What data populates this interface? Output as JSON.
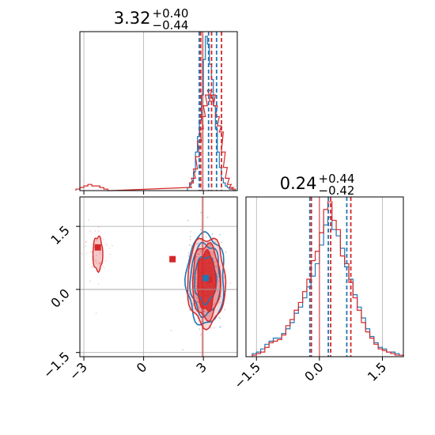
{
  "colors": {
    "blue": "#1f77b4",
    "red": "#d62728",
    "grid": "#b0b0b0"
  },
  "chart_data": [
    {
      "panel": "top-left",
      "type": "histogram",
      "title": {
        "median": "3.32",
        "plus": "+0.40",
        "minus": "−0.44"
      },
      "xlim": [
        -3.2,
        4.7
      ],
      "x_ticks": [
        -3,
        0,
        3
      ],
      "quantile_lines": {
        "blue": [
          2.85,
          3.32,
          3.72
        ],
        "red": [
          2.8,
          3.35,
          3.85
        ]
      },
      "truth_line": 2.95,
      "series": [
        {
          "color": "blue",
          "bins_x": [
            2.2,
            2.3,
            2.4,
            2.5,
            2.6,
            2.7,
            2.8,
            2.9,
            3.0,
            3.1,
            3.2,
            3.3,
            3.4,
            3.5,
            3.6,
            3.7,
            3.8,
            3.9,
            4.0,
            4.1,
            4.2,
            4.3,
            4.4,
            4.5
          ],
          "counts": [
            0.02,
            0.04,
            0.06,
            0.12,
            0.25,
            0.35,
            0.46,
            0.62,
            0.85,
            1.0,
            0.95,
            0.82,
            0.72,
            0.55,
            0.4,
            0.25,
            0.15,
            0.08,
            0.05,
            0.03,
            0.02,
            0.01,
            0.01,
            0.0
          ]
        },
        {
          "color": "red",
          "bins_x": [
            -3.4,
            -3.2,
            -3.0,
            -2.8,
            -2.6,
            -2.4,
            -2.2,
            -2.0,
            -1.8,
            2.2,
            2.3,
            2.4,
            2.5,
            2.6,
            2.7,
            2.8,
            2.9,
            3.0,
            3.1,
            3.2,
            3.3,
            3.4,
            3.5,
            3.6,
            3.7,
            3.8,
            3.9,
            4.0,
            4.1,
            4.2,
            4.3,
            4.4
          ],
          "counts": [
            0.01,
            0.02,
            0.03,
            0.04,
            0.03,
            0.03,
            0.02,
            0.01,
            0.0,
            0.02,
            0.05,
            0.08,
            0.14,
            0.22,
            0.32,
            0.4,
            0.48,
            0.55,
            0.62,
            0.65,
            0.58,
            0.62,
            0.55,
            0.48,
            0.42,
            0.38,
            0.25,
            0.15,
            0.08,
            0.04,
            0.02,
            0.01
          ]
        }
      ]
    },
    {
      "panel": "bottom-left",
      "type": "contour",
      "xlim": [
        -3.2,
        4.7
      ],
      "ylim": [
        -1.6,
        2.2
      ],
      "x_ticks": [
        -3,
        0,
        3
      ],
      "y_ticks": [
        -1.5,
        0.0,
        1.5
      ],
      "truth_lines": {
        "x": 2.95,
        "y": 0.0
      },
      "markers": [
        {
          "color": "red",
          "x": -2.3,
          "y": 1.0
        },
        {
          "color": "red",
          "x": 1.45,
          "y": 0.72
        },
        {
          "color": "red",
          "x": 3.3,
          "y": 0.23
        },
        {
          "color": "blue",
          "x": 3.12,
          "y": 0.27
        }
      ],
      "contours": {
        "main_center": [
          3.1,
          0.24
        ],
        "blue_radii": [
          [
            0.55,
            0.55
          ],
          [
            0.75,
            0.85
          ],
          [
            0.95,
            1.08
          ]
        ],
        "red_radii": [
          [
            0.45,
            0.7
          ],
          [
            0.7,
            0.88
          ],
          [
            0.95,
            1.05
          ]
        ],
        "red_island_center": [
          -2.3,
          0.85
        ],
        "red_island_radii": [
          0.45,
          0.45
        ]
      }
    },
    {
      "panel": "bottom-right",
      "type": "histogram",
      "title": {
        "median": "0.24",
        "plus": "+0.44",
        "minus": "−0.42"
      },
      "xlim": [
        -1.75,
        2.0
      ],
      "x_ticks": [
        -1.5,
        0.0,
        1.5
      ],
      "quantile_lines": {
        "blue": [
          -0.2,
          0.24,
          0.68
        ],
        "red": [
          -0.22,
          0.24,
          0.72
        ]
      },
      "truth_line": 0.0,
      "series": [
        {
          "color": "blue",
          "bins_x": [
            -1.6,
            -1.5,
            -1.4,
            -1.3,
            -1.2,
            -1.1,
            -1.0,
            -0.9,
            -0.8,
            -0.7,
            -0.6,
            -0.5,
            -0.4,
            -0.3,
            -0.2,
            -0.1,
            0.0,
            0.1,
            0.2,
            0.3,
            0.4,
            0.5,
            0.6,
            0.7,
            0.8,
            0.9,
            1.0,
            1.1,
            1.2,
            1.3,
            1.4,
            1.5,
            1.6,
            1.7,
            1.8,
            1.9
          ],
          "counts": [
            0.02,
            0.03,
            0.05,
            0.08,
            0.1,
            0.12,
            0.12,
            0.15,
            0.18,
            0.22,
            0.28,
            0.32,
            0.38,
            0.45,
            0.52,
            0.6,
            0.72,
            0.85,
            0.9,
            0.82,
            0.78,
            0.7,
            0.58,
            0.5,
            0.4,
            0.32,
            0.25,
            0.18,
            0.13,
            0.09,
            0.06,
            0.05,
            0.03,
            0.03,
            0.02,
            0.01
          ]
        },
        {
          "color": "red",
          "bins_x": [
            -1.6,
            -1.5,
            -1.4,
            -1.3,
            -1.2,
            -1.1,
            -1.0,
            -0.9,
            -0.8,
            -0.7,
            -0.6,
            -0.5,
            -0.4,
            -0.3,
            -0.2,
            -0.1,
            0.0,
            0.1,
            0.2,
            0.3,
            0.4,
            0.5,
            0.6,
            0.7,
            0.8,
            0.9,
            1.0,
            1.1,
            1.2,
            1.3,
            1.4,
            1.5,
            1.6,
            1.7,
            1.8,
            1.9
          ],
          "counts": [
            0.01,
            0.02,
            0.03,
            0.06,
            0.09,
            0.1,
            0.11,
            0.14,
            0.2,
            0.24,
            0.3,
            0.35,
            0.42,
            0.5,
            0.62,
            0.68,
            0.8,
            0.95,
            1.0,
            0.88,
            0.82,
            0.65,
            0.6,
            0.48,
            0.38,
            0.3,
            0.22,
            0.16,
            0.12,
            0.08,
            0.05,
            0.04,
            0.03,
            0.02,
            0.01,
            0.01
          ]
        }
      ]
    }
  ]
}
